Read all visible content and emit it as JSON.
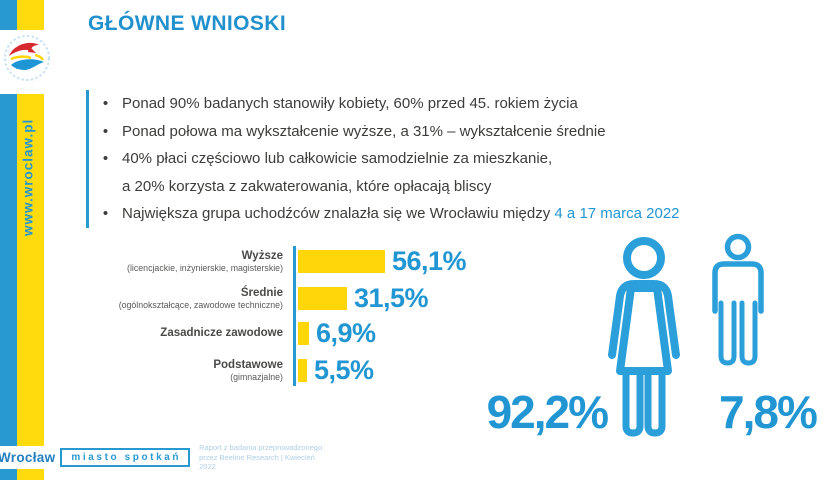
{
  "sidebar": {
    "url_label": "www.wroclaw.pl"
  },
  "header": {
    "title": "GŁÓWNE WNIOSKI"
  },
  "bullets": [
    {
      "text": "Ponad 90% badanych stanowiły kobiety, 60% przed 45. rokiem życia"
    },
    {
      "text": "Ponad połowa ma wykształcenie wyższe, a 31% – wykształcenie średnie"
    },
    {
      "text": "40% płaci częściowo lub całkowicie samodzielnie za mieszkanie,",
      "text2": "a 20% korzysta z zakwaterowania, które opłacają bliscy"
    },
    {
      "text": "Największa grupa uchodźców znalazła się we Wrocławiu między ",
      "highlight": "4 a 17 marca 2022"
    }
  ],
  "chart_data": [
    {
      "type": "bar",
      "orientation": "horizontal",
      "title": "",
      "categories": [
        "Wyższe",
        "Średnie",
        "Zasadnicze zawodowe",
        "Podstawowe"
      ],
      "category_sublabels": [
        "(licencjackie, inżynierskie, magisterskie)",
        "(ogólnokształcące, zawodowe techniczne)",
        "",
        "(gimnazjalne)"
      ],
      "values": [
        56.1,
        31.5,
        6.9,
        5.5
      ],
      "value_labels": [
        "56,1%",
        "31,5%",
        "6,9%",
        "5,5%"
      ],
      "unit": "%",
      "xlim": [
        0,
        60
      ],
      "grid": false,
      "legend": false,
      "bar_color": "#FFD60A",
      "value_label_color": "#2196D3",
      "axis_line_color": "#2899D1"
    },
    {
      "type": "pictogram",
      "categories": [
        "female",
        "male"
      ],
      "values": [
        92.2,
        7.8
      ],
      "value_labels": [
        "92,2%",
        "7,8%"
      ],
      "icon_color": "#2B9FD9"
    }
  ],
  "footer": {
    "brand": "Wrocław",
    "brand_tagline": "miasto spotkań",
    "source_line1": "Raport z badania przeprowadzonego",
    "source_line2": "przez Beeline Research | Kwiecień 2022"
  },
  "colors": {
    "stripe_blue": "#2899D1",
    "stripe_yellow": "#FFDA0D",
    "title_blue": "#2191CE",
    "body_text": "#3C3C3B",
    "bar_yellow": "#FFD60A",
    "accent_blue": "#2196D3",
    "icon_blue": "#2B9FD9",
    "footer_light_blue": "#AFCFE8"
  }
}
